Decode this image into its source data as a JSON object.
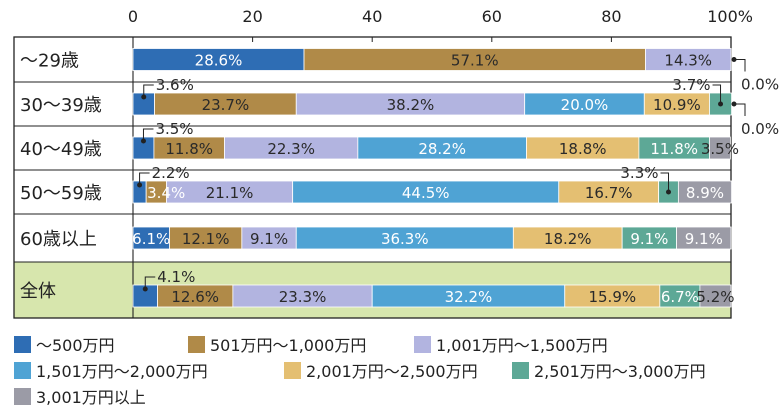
{
  "chart_data": {
    "type": "bar",
    "orientation": "horizontal",
    "stacked": true,
    "x_ticks": [
      "0",
      "20",
      "40",
      "60",
      "80",
      "100%"
    ],
    "xlim": [
      0,
      100
    ],
    "categories": [
      "～29歳",
      "30～39歳",
      "40～49歳",
      "50～59歳",
      "60歳以上",
      "全体"
    ],
    "highlight_category": "全体",
    "highlight_color": "#d7e6ad",
    "series": [
      {
        "name": "～500万円",
        "color": "#2e6db4",
        "values": [
          28.6,
          3.6,
          3.5,
          2.2,
          6.1,
          4.1
        ]
      },
      {
        "name": "501万円～1,000万円",
        "color": "#b08a48",
        "values": [
          57.1,
          23.7,
          11.8,
          3.4,
          12.1,
          12.6
        ]
      },
      {
        "name": "1,001万円～1,500万円",
        "color": "#b2b4e0",
        "values": [
          14.3,
          38.2,
          22.3,
          21.1,
          9.1,
          23.3
        ]
      },
      {
        "name": "1,501万円～2,000万円",
        "color": "#4fa3d4",
        "values": [
          0,
          20.0,
          28.2,
          44.5,
          36.3,
          32.2
        ]
      },
      {
        "name": "2,001万円～2,500万円",
        "color": "#e4bf72",
        "values": [
          0,
          10.9,
          18.8,
          16.7,
          18.2,
          15.9
        ]
      },
      {
        "name": "2,501万円～3,000万円",
        "color": "#5da896",
        "values": [
          0,
          3.7,
          11.8,
          3.3,
          9.1,
          6.7
        ]
      },
      {
        "name": "3,001万円以上",
        "color": "#9b9ba6",
        "values": [
          0,
          0.0,
          3.5,
          8.9,
          9.1,
          5.2
        ]
      }
    ],
    "value_labels": [
      [
        "28.6%",
        "57.1%",
        "14.3%",
        "0.0%",
        "",
        "",
        ""
      ],
      [
        "3.6%",
        "23.7%",
        "38.2%",
        "20.0%",
        "10.9%",
        "3.7%",
        "0.0%"
      ],
      [
        "3.5%",
        "11.8%",
        "22.3%",
        "28.2%",
        "18.8%",
        "11.8%",
        "3.5%"
      ],
      [
        "2.2%",
        "3.4%",
        "21.1%",
        "44.5%",
        "16.7%",
        "3.3%",
        "8.9%"
      ],
      [
        "6.1%",
        "12.1%",
        "9.1%",
        "36.3%",
        "18.2%",
        "9.1%",
        "9.1%"
      ],
      [
        "4.1%",
        "12.6%",
        "23.3%",
        "32.2%",
        "15.9%",
        "6.7%",
        "5.2%"
      ]
    ]
  }
}
